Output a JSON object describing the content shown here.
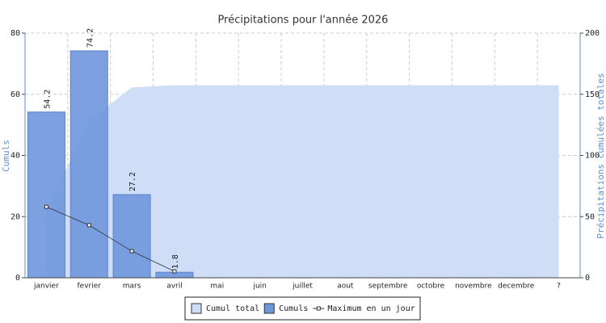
{
  "chart_data": {
    "type": "bar",
    "title": "Précipitations pour l'année 2026",
    "categories": [
      "janvier",
      "fevrier",
      "mars",
      "avril",
      "mai",
      "juin",
      "juillet",
      "aout",
      "septembre",
      "octobre",
      "novembre",
      "decembre",
      "?"
    ],
    "ylabel": "Cumuls",
    "y2label": "Précipitations cumulées totales",
    "ylim": [
      0,
      80
    ],
    "yticks": [
      0,
      20,
      40,
      60,
      80
    ],
    "y2lim": [
      0,
      200
    ],
    "y2ticks": [
      0,
      50,
      100,
      150,
      200
    ],
    "grid": true,
    "legend": "bottom",
    "series": [
      {
        "name": "Cumul total",
        "type": "area",
        "axis": "y2",
        "color": "#d0ddf7",
        "values": [
          54.2,
          128.4,
          155.6,
          157.4,
          157.4,
          157.4,
          157.4,
          157.4,
          157.4,
          157.4,
          157.4,
          157.4,
          157.4
        ]
      },
      {
        "name": "Cumuls",
        "type": "bar",
        "color": "#6f97dd",
        "values": [
          54.2,
          74.2,
          27.2,
          1.8,
          null,
          null,
          null,
          null,
          null,
          null,
          null,
          null,
          null
        ]
      },
      {
        "name": "Maximum en un jour",
        "type": "line",
        "color": "#333333",
        "values": [
          23.2,
          17.2,
          8.7,
          2.1,
          null,
          null,
          null,
          null,
          null,
          null,
          null,
          null,
          null
        ]
      }
    ]
  }
}
